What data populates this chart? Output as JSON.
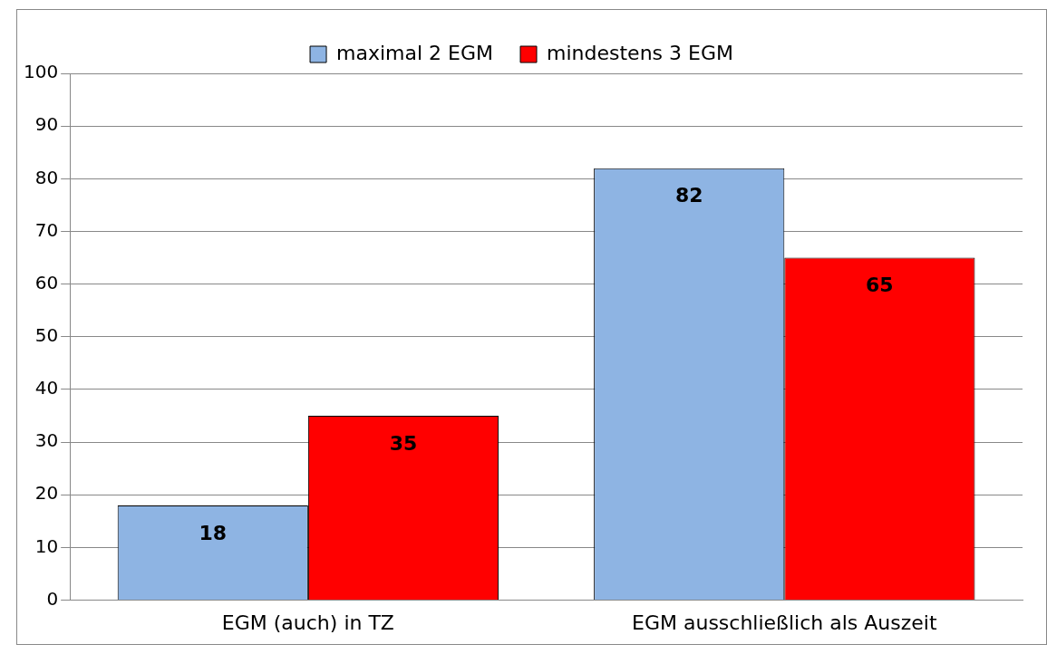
{
  "chart_data": {
    "type": "bar",
    "categories": [
      "EGM (auch) in TZ",
      "EGM ausschließlich als Auszeit"
    ],
    "series": [
      {
        "name": "maximal 2 EGM",
        "color": "#8eb4e3",
        "values": [
          18,
          82
        ]
      },
      {
        "name": "mindestens 3 EGM",
        "color": "#ff0000",
        "values": [
          35,
          65
        ]
      }
    ],
    "ylim": [
      0,
      100
    ],
    "yticks": [
      0,
      10,
      20,
      30,
      40,
      50,
      60,
      70,
      80,
      90,
      100
    ],
    "grid": "y",
    "legend": "top",
    "data_labels": true
  }
}
